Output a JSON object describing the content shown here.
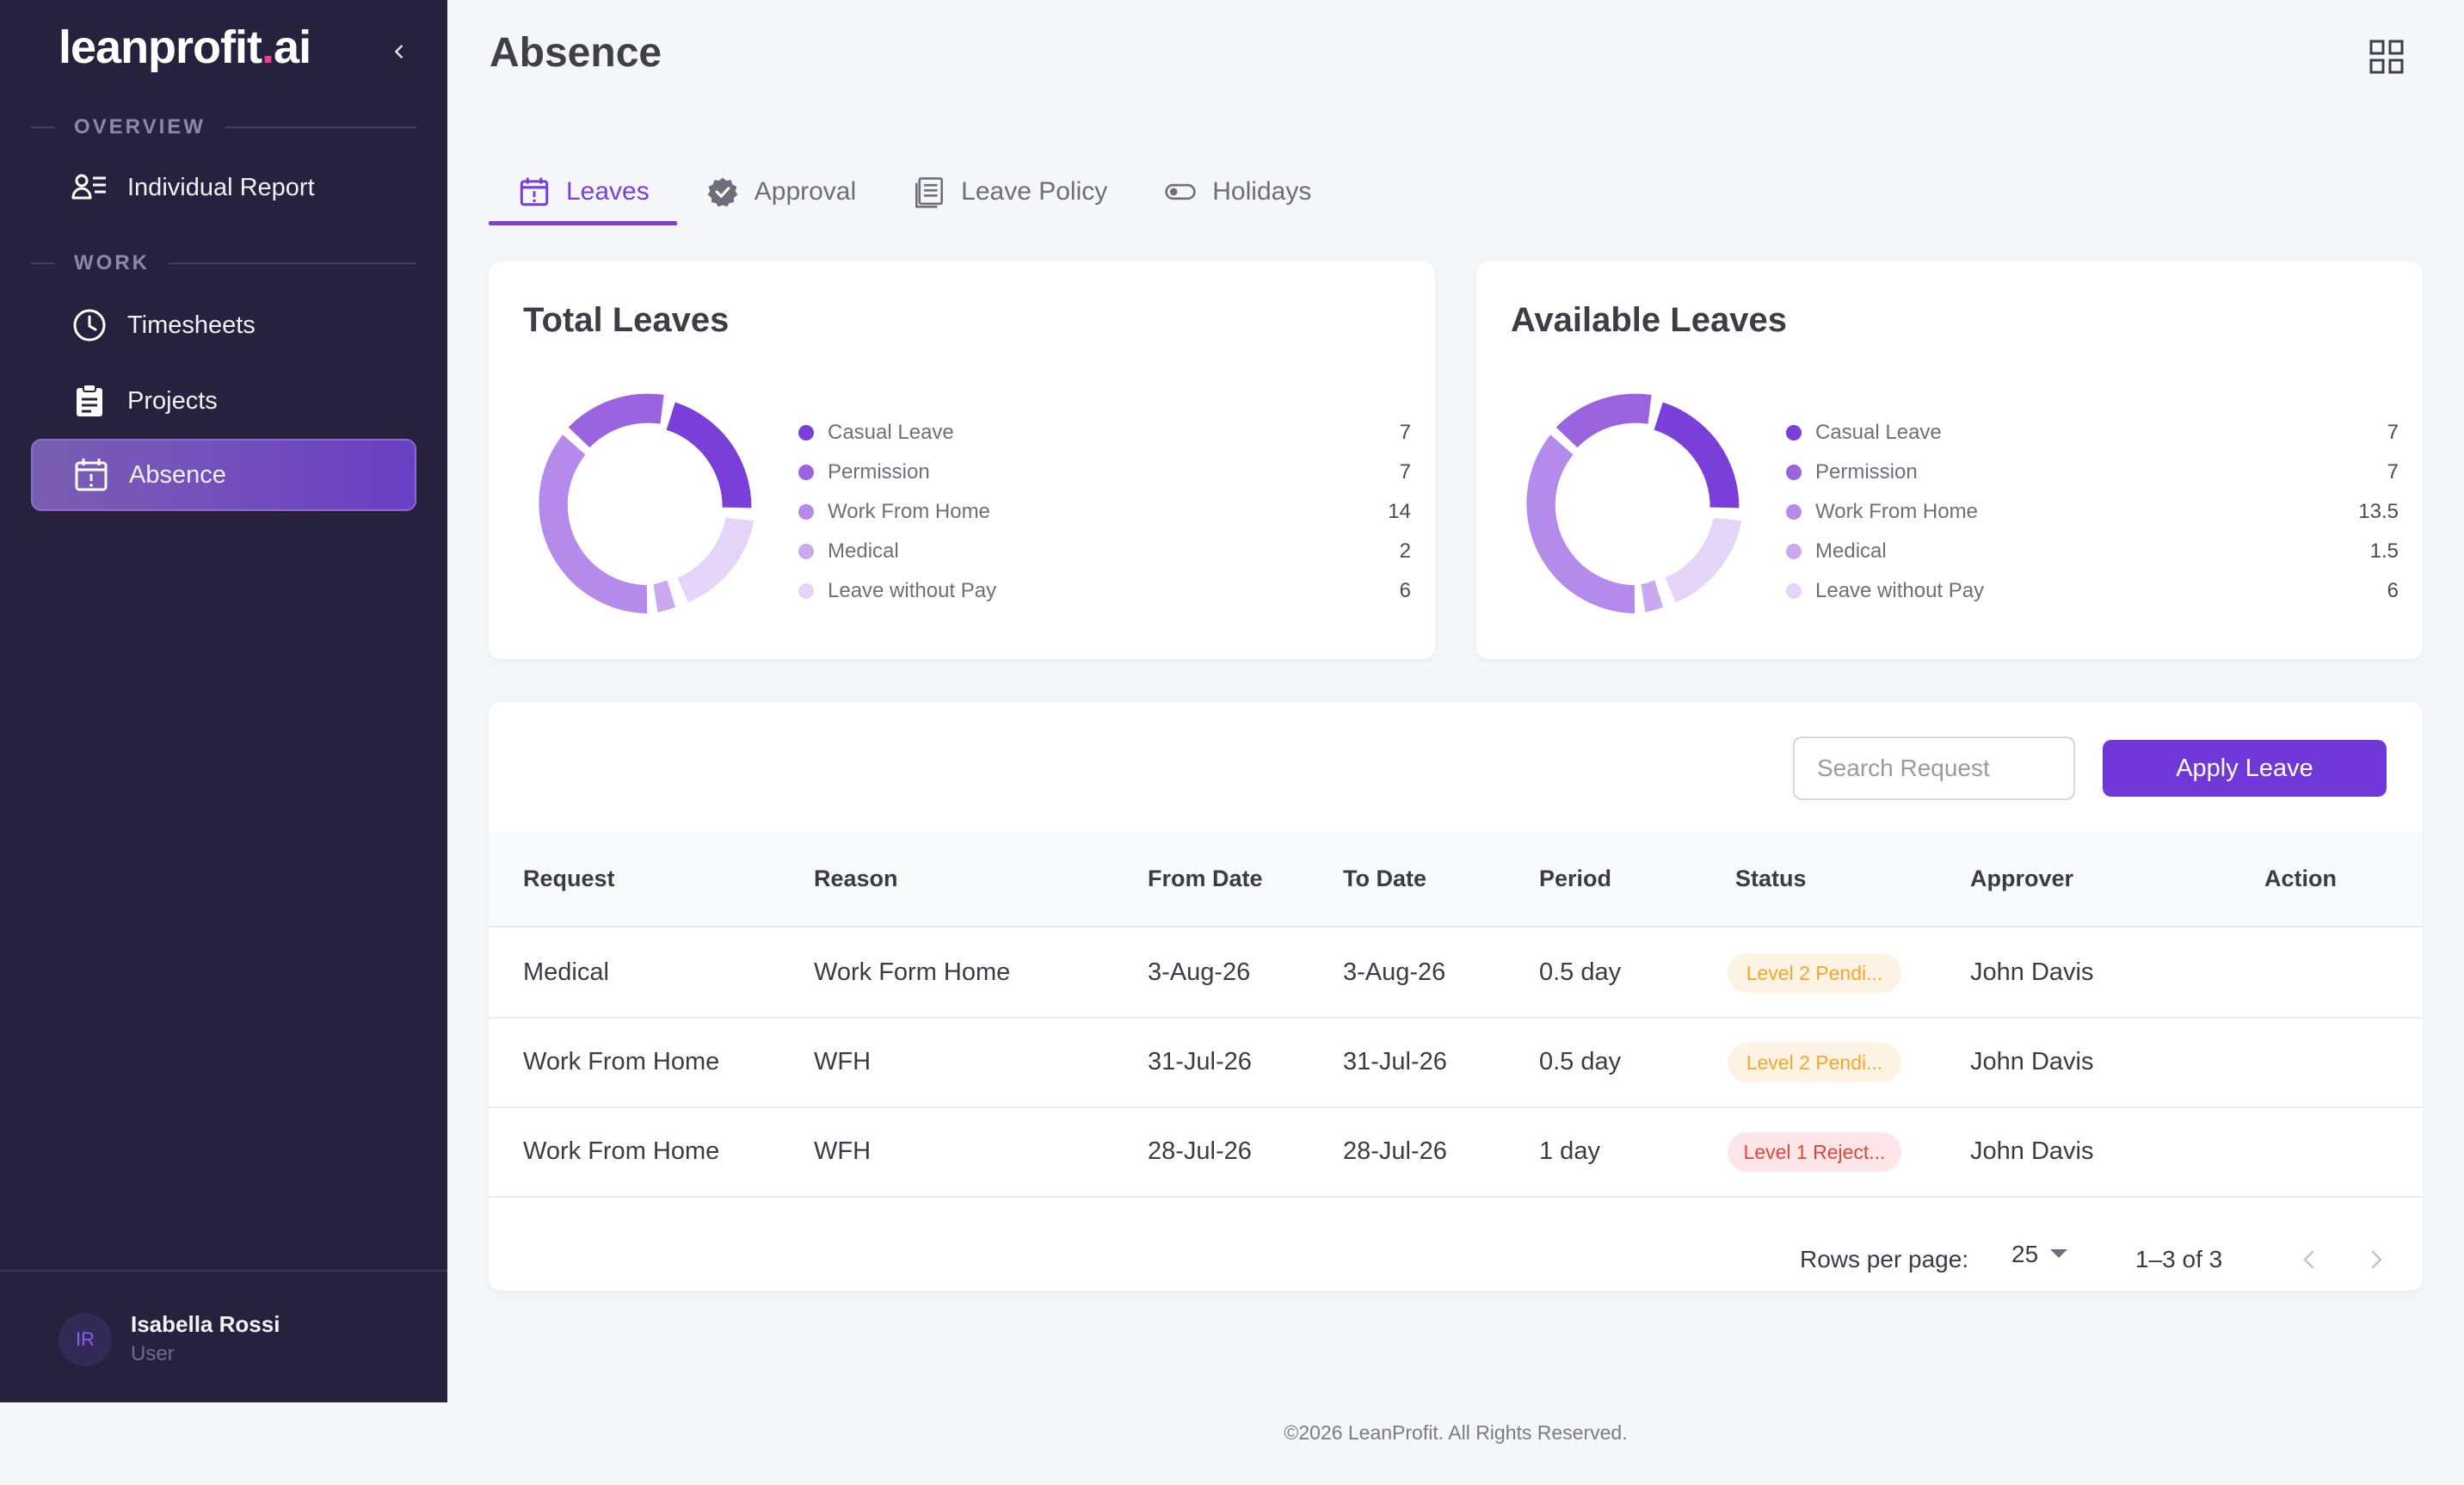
{
  "app": {
    "logo_main": "leanprofit",
    "logo_dot": ".",
    "logo_suffix": "ai"
  },
  "sidebar": {
    "sections": [
      "OVERVIEW",
      "WORK"
    ],
    "items": [
      {
        "label": "Individual Report",
        "icon": "person-list-icon"
      },
      {
        "label": "Timesheets",
        "icon": "clock-icon"
      },
      {
        "label": "Projects",
        "icon": "clipboard-icon"
      },
      {
        "label": "Absence",
        "icon": "calendar-alert-icon",
        "active": true
      }
    ],
    "user": {
      "initials": "IR",
      "name": "Isabella Rossi",
      "role": "User"
    }
  },
  "header": {
    "title": "Absence"
  },
  "tabs": [
    {
      "label": "Leaves",
      "icon": "calendar-alert-icon",
      "active": true
    },
    {
      "label": "Approval",
      "icon": "verified-badge-icon"
    },
    {
      "label": "Leave Policy",
      "icon": "document-list-icon"
    },
    {
      "label": "Holidays",
      "icon": "toggle-icon"
    }
  ],
  "colors": {
    "accent": "#7a3fd9",
    "legend": [
      "#7a3fd9",
      "#9a63e0",
      "#b48aeb",
      "#c9aaf0",
      "#e3d4f8"
    ]
  },
  "total_leaves": {
    "title": "Total Leaves",
    "items": [
      {
        "label": "Casual Leave",
        "value": "7"
      },
      {
        "label": "Permission",
        "value": "7"
      },
      {
        "label": "Work From Home",
        "value": "14"
      },
      {
        "label": "Medical",
        "value": "2"
      },
      {
        "label": "Leave without Pay",
        "value": "6"
      }
    ]
  },
  "available_leaves": {
    "title": "Available Leaves",
    "items": [
      {
        "label": "Casual Leave",
        "value": "7"
      },
      {
        "label": "Permission",
        "value": "7"
      },
      {
        "label": "Work From Home",
        "value": "13.5"
      },
      {
        "label": "Medical",
        "value": "1.5"
      },
      {
        "label": "Leave without Pay",
        "value": "6"
      }
    ]
  },
  "requests": {
    "search_placeholder": "Search Request",
    "apply_label": "Apply Leave",
    "columns": [
      "Request",
      "Reason",
      "From Date",
      "To Date",
      "Period",
      "Status",
      "Approver",
      "Action"
    ],
    "rows": [
      {
        "request": "Medical",
        "reason": "Work Form Home",
        "from": "3-Aug-26",
        "to": "3-Aug-26",
        "period": "0.5 day",
        "status": "Level 2 Pendi...",
        "approver": "John Davis"
      },
      {
        "request": "Work From Home",
        "reason": "WFH",
        "from": "31-Jul-26",
        "to": "31-Jul-26",
        "period": "0.5 day",
        "status": "Level 2 Pendi...",
        "approver": "John Davis"
      },
      {
        "request": "Work From Home",
        "reason": "WFH",
        "from": "28-Jul-26",
        "to": "28-Jul-26",
        "period": "1 day",
        "status": "Level 1 Reject...",
        "approver": "John Davis"
      }
    ],
    "pagination": {
      "rows_label": "Rows per page:",
      "rows_value": "25",
      "range": "1–3 of 3"
    }
  },
  "footer": {
    "text": "©2026 LeanProfit. All Rights Reserved."
  }
}
